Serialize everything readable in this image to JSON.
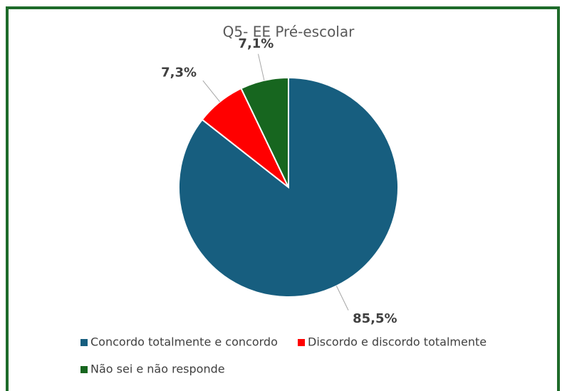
{
  "chart_data": {
    "type": "pie",
    "title": "Q5- EE Pré-escolar",
    "categories": [
      "Concordo totalmente e concordo",
      "Discordo e discordo totalmente",
      "Não sei e não responde"
    ],
    "values": [
      85.5,
      7.3,
      7.1
    ],
    "value_labels": [
      "85,5%",
      "7,3%",
      "7,1%"
    ],
    "colors": [
      "#175e7f",
      "#ff0000",
      "#17661f"
    ]
  }
}
